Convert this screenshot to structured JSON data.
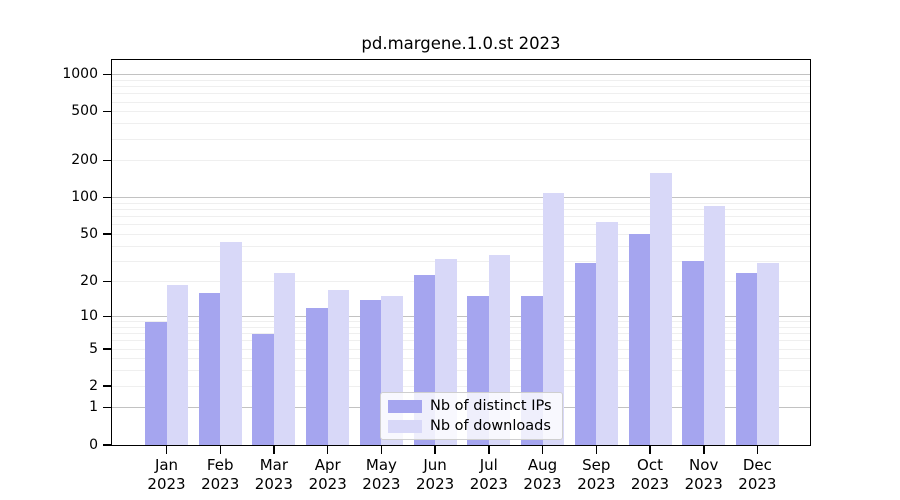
{
  "chart_data": {
    "type": "bar",
    "title": "pd.margene.1.0.st 2023",
    "categories": [
      "Jan",
      "Feb",
      "Mar",
      "Apr",
      "May",
      "Jun",
      "Jul",
      "Aug",
      "Sep",
      "Oct",
      "Nov",
      "Dec"
    ],
    "category_year": "2023",
    "series": [
      {
        "name": "Nb of distinct IPs",
        "color": "#a5a5ef",
        "values": [
          9,
          16,
          7,
          12,
          14,
          23,
          15,
          15,
          29,
          50,
          30,
          24
        ]
      },
      {
        "name": "Nb of downloads",
        "color": "#d8d8f8",
        "values": [
          19,
          43,
          24,
          17,
          15,
          31,
          34,
          110,
          63,
          160,
          86,
          29
        ]
      }
    ],
    "yscale": "log1p",
    "yticks": [
      0,
      1,
      2,
      5,
      10,
      20,
      50,
      100,
      200,
      500,
      1000
    ],
    "ylim": [
      0,
      1300
    ],
    "xlabel": "",
    "ylabel": "",
    "grid": true,
    "legend_position": "inside-bottom-center"
  },
  "colors": {
    "background": "#ffffff",
    "axis": "#000000",
    "grid_major": "#c2c2c2",
    "grid_minor": "#efefef",
    "bar_distinct_ips": "#a5a5ef",
    "bar_downloads": "#d8d8f8"
  }
}
